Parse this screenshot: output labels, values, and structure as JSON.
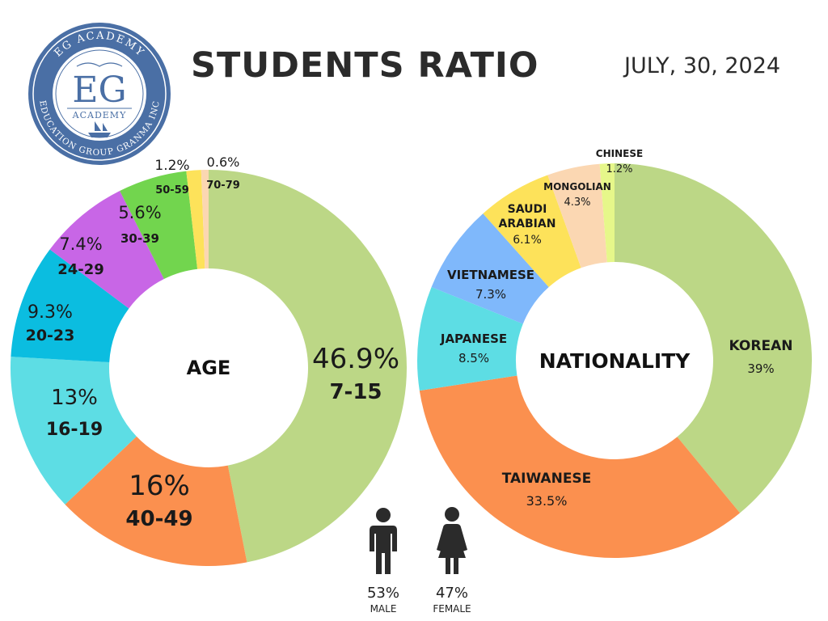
{
  "header": {
    "title": "STUDENTS RATIO",
    "date": "JULY, 30, 2024"
  },
  "logo": {
    "top_text": "EG ACADEMY",
    "monogram": "EG",
    "subtitle": "ACADEMY",
    "ring_text": "EDUCATION GROUP GRANMA INC",
    "ring_color": "#4a6fa5"
  },
  "chart_data": [
    {
      "type": "pie",
      "variant": "donut",
      "center_label": "AGE",
      "slices": [
        {
          "label": "7-15",
          "value": 46.9,
          "value_label": "46.9%",
          "color": "#bcd786"
        },
        {
          "label": "40-49",
          "value": 16.0,
          "value_label": "16%",
          "color": "#fb904f"
        },
        {
          "label": "16-19",
          "value": 13.0,
          "value_label": "13%",
          "color": "#5ddde4"
        },
        {
          "label": "20-23",
          "value": 9.3,
          "value_label": "9.3%",
          "color": "#0bbde0"
        },
        {
          "label": "24-29",
          "value": 7.4,
          "value_label": "7.4%",
          "color": "#c866e6"
        },
        {
          "label": "30-39",
          "value": 5.6,
          "value_label": "5.6%",
          "color": "#72d54e"
        },
        {
          "label": "50-59",
          "value": 1.2,
          "value_label": "1.2%",
          "color": "#fde25a"
        },
        {
          "label": "70-79",
          "value": 0.6,
          "value_label": "0.6%",
          "color": "#fbd7b2"
        }
      ]
    },
    {
      "type": "pie",
      "variant": "donut",
      "center_label": "NATIONALITY",
      "slices": [
        {
          "label": "KOREAN",
          "value": 39.0,
          "value_label": "39%",
          "color": "#bcd786"
        },
        {
          "label": "TAIWANESE",
          "value": 33.5,
          "value_label": "33.5%",
          "color": "#fb904f"
        },
        {
          "label": "JAPANESE",
          "value": 8.5,
          "value_label": "8.5%",
          "color": "#5ddde4"
        },
        {
          "label": "VIETNAMESE",
          "value": 7.3,
          "value_label": "7.3%",
          "color": "#7fb8fb"
        },
        {
          "label": "SAUDI ARABIAN",
          "value": 6.1,
          "value_label": "6.1%",
          "color": "#fde25a"
        },
        {
          "label": "MONGOLIAN",
          "value": 4.3,
          "value_label": "4.3%",
          "color": "#fbd7b2"
        },
        {
          "label": "CHINESE",
          "value": 1.2,
          "value_label": "1.2%",
          "color": "#e6f78a"
        }
      ]
    }
  ],
  "gender": {
    "male": {
      "value_label": "53%",
      "label": "MALE",
      "icon": "male-person-icon"
    },
    "female": {
      "value_label": "47%",
      "label": "FEMALE",
      "icon": "female-person-icon"
    }
  }
}
